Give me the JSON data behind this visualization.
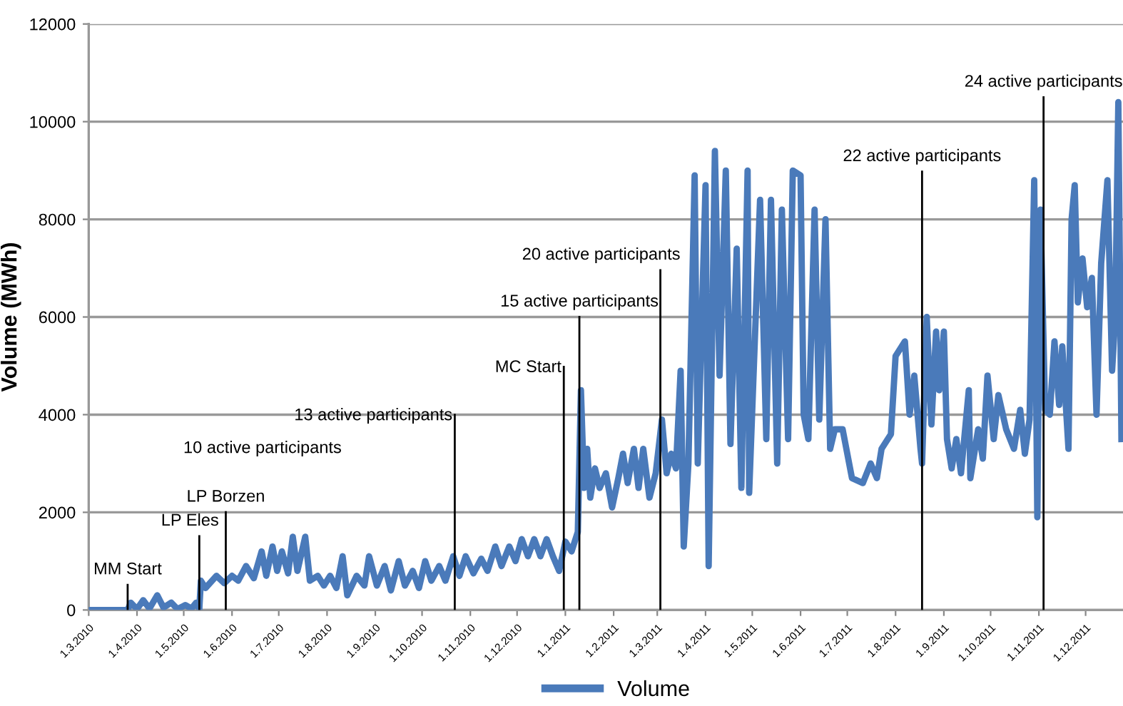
{
  "chart_data": {
    "type": "line",
    "ylabel": "Volume (MWh)",
    "ylim": [
      0,
      12000
    ],
    "yticks": [
      0,
      2000,
      4000,
      6000,
      8000,
      10000,
      12000
    ],
    "xlim": [
      "2010-03-01",
      "2011-12-25"
    ],
    "xticks": [
      {
        "value": "2010-03-01",
        "label": "1.3.2010"
      },
      {
        "value": "2010-04-01",
        "label": "1.4.2010"
      },
      {
        "value": "2010-05-01",
        "label": "1.5.2010"
      },
      {
        "value": "2010-06-01",
        "label": "1.6.2010"
      },
      {
        "value": "2010-07-01",
        "label": "1.7.2010"
      },
      {
        "value": "2010-08-01",
        "label": "1.8.2010"
      },
      {
        "value": "2010-09-01",
        "label": "1.9.2010"
      },
      {
        "value": "2010-10-01",
        "label": "1.10.2010"
      },
      {
        "value": "2010-11-01",
        "label": "1.11.2010"
      },
      {
        "value": "2010-12-01",
        "label": "1.12.2010"
      },
      {
        "value": "2011-01-01",
        "label": "1.1.2011"
      },
      {
        "value": "2011-02-01",
        "label": "1.2.2011"
      },
      {
        "value": "2011-03-01",
        "label": "1.3.2011"
      },
      {
        "value": "2011-04-01",
        "label": "1.4.2011"
      },
      {
        "value": "2011-05-01",
        "label": "1.5.2011"
      },
      {
        "value": "2011-06-01",
        "label": "1.6.2011"
      },
      {
        "value": "2011-07-01",
        "label": "1.7.2011"
      },
      {
        "value": "2011-08-01",
        "label": "1.8.2011"
      },
      {
        "value": "2011-09-01",
        "label": "1.9.2011"
      },
      {
        "value": "2011-10-01",
        "label": "1.10.2011"
      },
      {
        "value": "2011-11-01",
        "label": "1.11.2011"
      },
      {
        "value": "2011-12-01",
        "label": "1.12.2011"
      }
    ],
    "grid": "y",
    "legend": "bottom",
    "marker": "none",
    "line_style": "solid",
    "series": [
      {
        "name": "Volume",
        "color": "#4a7aba",
        "x": [
          "2010-03-01",
          "2010-03-26",
          "2010-03-28",
          "2010-04-01",
          "2010-04-05",
          "2010-04-09",
          "2010-04-14",
          "2010-04-18",
          "2010-04-23",
          "2010-04-27",
          "2010-05-02",
          "2010-05-06",
          "2010-05-09",
          "2010-05-11",
          "2010-05-12",
          "2010-05-15",
          "2010-05-22",
          "2010-05-27",
          "2010-06-01",
          "2010-06-05",
          "2010-06-10",
          "2010-06-15",
          "2010-06-20",
          "2010-06-23",
          "2010-06-27",
          "2010-06-30",
          "2010-07-03",
          "2010-07-07",
          "2010-07-10",
          "2010-07-13",
          "2010-07-18",
          "2010-07-21",
          "2010-07-26",
          "2010-07-30",
          "2010-08-03",
          "2010-08-07",
          "2010-08-11",
          "2010-08-14",
          "2010-08-20",
          "2010-08-25",
          "2010-08-28",
          "2010-09-02",
          "2010-09-07",
          "2010-09-11",
          "2010-09-16",
          "2010-09-20",
          "2010-09-25",
          "2010-09-29",
          "2010-10-03",
          "2010-10-07",
          "2010-10-12",
          "2010-10-16",
          "2010-10-21",
          "2010-10-25",
          "2010-10-29",
          "2010-11-03",
          "2010-11-08",
          "2010-11-12",
          "2010-11-17",
          "2010-11-21",
          "2010-11-26",
          "2010-11-30",
          "2010-12-04",
          "2010-12-08",
          "2010-12-12",
          "2010-12-16",
          "2010-12-20",
          "2010-12-24",
          "2010-12-28",
          "2011-01-01",
          "2011-01-05",
          "2011-01-09",
          "2011-01-11",
          "2011-01-13",
          "2011-01-15",
          "2011-01-17",
          "2011-01-20",
          "2011-01-23",
          "2011-01-27",
          "2011-01-31",
          "2011-02-04",
          "2011-02-07",
          "2011-02-10",
          "2011-02-14",
          "2011-02-17",
          "2011-02-20",
          "2011-02-24",
          "2011-02-28",
          "2011-03-04",
          "2011-03-07",
          "2011-03-10",
          "2011-03-13",
          "2011-03-16",
          "2011-03-18",
          "2011-03-21",
          "2011-03-25",
          "2011-03-27",
          "2011-04-01",
          "2011-04-03",
          "2011-04-07",
          "2011-04-10",
          "2011-04-14",
          "2011-04-17",
          "2011-04-21",
          "2011-04-24",
          "2011-04-28",
          "2011-04-29",
          "2011-05-06",
          "2011-05-10",
          "2011-05-13",
          "2011-05-17",
          "2011-05-20",
          "2011-05-24",
          "2011-05-27",
          "2011-06-01",
          "2011-06-03",
          "2011-06-06",
          "2011-06-10",
          "2011-06-13",
          "2011-06-17",
          "2011-06-20",
          "2011-06-23",
          "2011-06-28",
          "2011-07-04",
          "2011-07-11",
          "2011-07-16",
          "2011-07-20",
          "2011-07-23",
          "2011-07-29",
          "2011-08-01",
          "2011-08-07",
          "2011-08-10",
          "2011-08-13",
          "2011-08-17",
          "2011-08-18",
          "2011-08-21",
          "2011-08-24",
          "2011-08-27",
          "2011-08-29",
          "2011-09-01",
          "2011-09-03",
          "2011-09-06",
          "2011-09-09",
          "2011-09-12",
          "2011-09-17",
          "2011-09-18",
          "2011-09-23",
          "2011-09-26",
          "2011-09-29",
          "2011-10-03",
          "2011-10-06",
          "2011-10-11",
          "2011-10-16",
          "2011-10-20",
          "2011-10-23",
          "2011-10-26",
          "2011-10-29",
          "2011-10-31",
          "2011-11-02",
          "2011-11-05",
          "2011-11-08",
          "2011-11-11",
          "2011-11-14",
          "2011-11-16",
          "2011-11-20",
          "2011-11-22",
          "2011-11-24",
          "2011-11-26",
          "2011-11-29",
          "2011-12-02",
          "2011-12-05",
          "2011-12-08",
          "2011-12-11",
          "2011-12-15",
          "2011-12-18",
          "2011-12-20",
          "2011-12-22",
          "2011-12-24"
        ],
        "values": [
          0,
          0,
          150,
          20,
          200,
          30,
          300,
          50,
          150,
          20,
          100,
          30,
          150,
          20,
          600,
          450,
          700,
          550,
          700,
          600,
          900,
          650,
          1200,
          700,
          1300,
          800,
          1200,
          750,
          1500,
          800,
          1500,
          600,
          700,
          500,
          700,
          450,
          1100,
          300,
          700,
          500,
          1100,
          500,
          900,
          400,
          1000,
          500,
          800,
          450,
          1000,
          600,
          900,
          600,
          1100,
          700,
          1100,
          750,
          1050,
          800,
          1300,
          900,
          1300,
          1000,
          1450,
          1100,
          1450,
          1100,
          1450,
          1100,
          800,
          1400,
          1200,
          1600,
          4500,
          2500,
          3300,
          2300,
          2900,
          2500,
          2800,
          2100,
          2700,
          3200,
          2600,
          3300,
          2500,
          3300,
          2300,
          2800,
          3900,
          2800,
          3200,
          2900,
          4900,
          1300,
          3000,
          8900,
          3000,
          8700,
          900,
          9400,
          4800,
          9000,
          3400,
          7400,
          2500,
          9000,
          2400,
          8400,
          3500,
          8400,
          3000,
          8200,
          3500,
          9000,
          8900,
          4000,
          3500,
          8200,
          3900,
          8000,
          3300,
          3700,
          3700,
          2700,
          2600,
          3000,
          2700,
          3300,
          3600,
          5200,
          5500,
          4000,
          4800,
          3300,
          3000,
          6000,
          3800,
          5700,
          4500,
          5700,
          3500,
          2900,
          3500,
          2800,
          4500,
          2700,
          3700,
          3100,
          4800,
          3500,
          4400,
          3700,
          3300,
          4100,
          3200,
          3900,
          8800,
          1900,
          8200,
          4100,
          4000,
          5500,
          4200,
          5400,
          3300,
          8000,
          8700,
          6300,
          7200,
          6200,
          6800,
          4000,
          7100,
          8800,
          4900,
          6000,
          10400,
          3500
        ]
      }
    ],
    "ref_lines": [
      {
        "axis": "x",
        "value": "2010-03-26",
        "label": "MM Start",
        "color": "#000000"
      },
      {
        "axis": "x",
        "value": "2010-05-11",
        "label": "LP Eles",
        "color": "#000000"
      },
      {
        "axis": "x",
        "value": "2010-05-28",
        "label": "LP Borzen",
        "color": "#000000"
      },
      {
        "axis": "x",
        "value": "2010-10-22",
        "label": "13 active participants",
        "color": "#000000"
      },
      {
        "axis": "x",
        "value": "2010-12-31",
        "label": "MC Start",
        "color": "#000000"
      },
      {
        "axis": "x",
        "value": "2011-01-10",
        "label": "15 active participants",
        "color": "#000000"
      },
      {
        "axis": "x",
        "value": "2011-03-03",
        "label": "20 active participants",
        "color": "#000000"
      },
      {
        "axis": "x",
        "value": "2011-08-18",
        "label": "22 active participants",
        "color": "#000000"
      },
      {
        "axis": "x",
        "value": "2011-11-04",
        "label": "24 active participants",
        "color": "#000000"
      }
    ],
    "annotations": [
      "10 active participants"
    ]
  }
}
